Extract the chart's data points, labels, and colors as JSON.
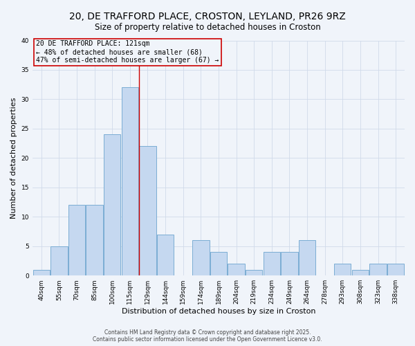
{
  "title": "20, DE TRAFFORD PLACE, CROSTON, LEYLAND, PR26 9RZ",
  "subtitle": "Size of property relative to detached houses in Croston",
  "xlabel": "Distribution of detached houses by size in Croston",
  "ylabel": "Number of detached properties",
  "bar_labels": [
    "40sqm",
    "55sqm",
    "70sqm",
    "85sqm",
    "100sqm",
    "115sqm",
    "129sqm",
    "144sqm",
    "159sqm",
    "174sqm",
    "189sqm",
    "204sqm",
    "219sqm",
    "234sqm",
    "249sqm",
    "264sqm",
    "278sqm",
    "293sqm",
    "308sqm",
    "323sqm",
    "338sqm"
  ],
  "bar_values": [
    1,
    5,
    12,
    12,
    24,
    32,
    22,
    7,
    0,
    6,
    4,
    2,
    1,
    4,
    4,
    6,
    0,
    2,
    1,
    2,
    2
  ],
  "bar_color": "#c5d8f0",
  "bar_edgecolor": "#7badd4",
  "marker_label": "20 DE TRAFFORD PLACE: 121sqm\n← 48% of detached houses are smaller (68)\n47% of semi-detached houses are larger (67) →",
  "annotation_box_edgecolor": "#cc0000",
  "vline_color": "#cc0000",
  "vline_x": 5.5,
  "ylim": [
    0,
    40
  ],
  "yticks": [
    0,
    5,
    10,
    15,
    20,
    25,
    30,
    35,
    40
  ],
  "grid_color": "#d0daea",
  "background_color": "#f0f4fa",
  "footer1": "Contains HM Land Registry data © Crown copyright and database right 2025.",
  "footer2": "Contains public sector information licensed under the Open Government Licence v3.0.",
  "title_fontsize": 10,
  "subtitle_fontsize": 8.5,
  "label_fontsize": 8,
  "tick_fontsize": 6.5,
  "annot_fontsize": 7,
  "footer_fontsize": 5.5
}
